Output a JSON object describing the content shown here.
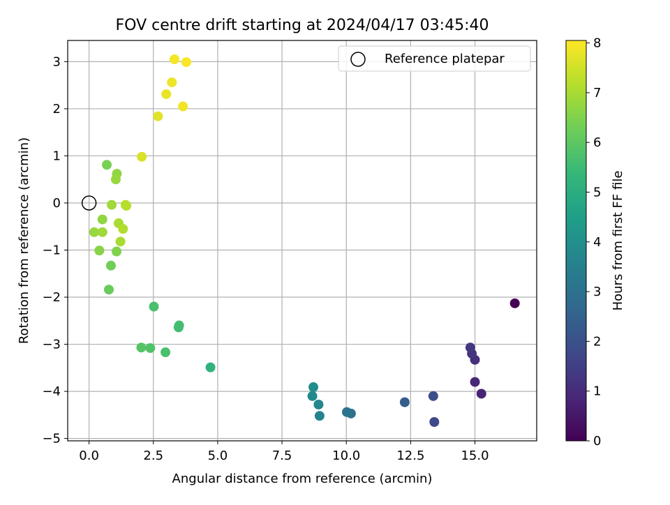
{
  "chart_data": {
    "type": "scatter",
    "title": "FOV centre drift starting at 2024/04/17 03:45:40",
    "xlabel": "Angular distance from reference (arcmin)",
    "ylabel": "Rotation from reference (arcmin)",
    "xlim": [
      -0.83,
      17.4
    ],
    "ylim": [
      -5.05,
      3.45
    ],
    "xticks": [
      0.0,
      2.5,
      5.0,
      7.5,
      10.0,
      12.5,
      15.0
    ],
    "xtick_labels": [
      "0.0",
      "2.5",
      "5.0",
      "7.5",
      "10.0",
      "12.5",
      "15.0"
    ],
    "yticks": [
      -5,
      -4,
      -3,
      -2,
      -1,
      0,
      1,
      2,
      3
    ],
    "ytick_labels": [
      "−5",
      "−4",
      "−3",
      "−2",
      "−1",
      "0",
      "1",
      "2",
      "3"
    ],
    "grid": true,
    "legend": {
      "position": "top-right",
      "entries": [
        "Reference platepar"
      ]
    },
    "reference_point": {
      "x": 0.0,
      "y": 0.0
    },
    "colorbar": {
      "label": "Hours from first FF file",
      "range": [
        0,
        8.05
      ],
      "ticks": [
        0,
        1,
        2,
        3,
        4,
        5,
        6,
        7,
        8
      ],
      "tick_labels": [
        "0",
        "1",
        "2",
        "3",
        "4",
        "5",
        "6",
        "7",
        "8"
      ],
      "colormap": "viridis"
    },
    "points": [
      {
        "x": 16.55,
        "y": -2.13,
        "hours": 0.0
      },
      {
        "x": 15.25,
        "y": -4.05,
        "hours": 0.8
      },
      {
        "x": 15.0,
        "y": -3.8,
        "hours": 0.9
      },
      {
        "x": 15.0,
        "y": -3.33,
        "hours": 1.1
      },
      {
        "x": 14.88,
        "y": -3.2,
        "hours": 1.2
      },
      {
        "x": 14.82,
        "y": -3.07,
        "hours": 1.3
      },
      {
        "x": 13.42,
        "y": -4.65,
        "hours": 1.8
      },
      {
        "x": 13.38,
        "y": -4.1,
        "hours": 1.9
      },
      {
        "x": 12.27,
        "y": -4.23,
        "hours": 2.4
      },
      {
        "x": 10.18,
        "y": -4.47,
        "hours": 3.0
      },
      {
        "x": 10.02,
        "y": -4.44,
        "hours": 3.1
      },
      {
        "x": 8.96,
        "y": -4.52,
        "hours": 3.6
      },
      {
        "x": 8.92,
        "y": -4.28,
        "hours": 3.7
      },
      {
        "x": 8.68,
        "y": -4.1,
        "hours": 3.8
      },
      {
        "x": 8.72,
        "y": -3.91,
        "hours": 3.9
      },
      {
        "x": 4.72,
        "y": -3.49,
        "hours": 5.2
      },
      {
        "x": 3.48,
        "y": -2.64,
        "hours": 5.5
      },
      {
        "x": 3.5,
        "y": -2.6,
        "hours": 5.6
      },
      {
        "x": 2.97,
        "y": -3.17,
        "hours": 5.7
      },
      {
        "x": 2.38,
        "y": -3.08,
        "hours": 5.8
      },
      {
        "x": 2.03,
        "y": -3.07,
        "hours": 5.9
      },
      {
        "x": 2.52,
        "y": -2.2,
        "hours": 5.7
      },
      {
        "x": 0.77,
        "y": -1.84,
        "hours": 6.2
      },
      {
        "x": 0.85,
        "y": -1.33,
        "hours": 6.3
      },
      {
        "x": 0.69,
        "y": 0.81,
        "hours": 6.4
      },
      {
        "x": 1.07,
        "y": -1.03,
        "hours": 6.5
      },
      {
        "x": 0.4,
        "y": -1.01,
        "hours": 6.6
      },
      {
        "x": 0.52,
        "y": -0.35,
        "hours": 6.7
      },
      {
        "x": 1.08,
        "y": 0.62,
        "hours": 6.7
      },
      {
        "x": 1.04,
        "y": 0.5,
        "hours": 6.8
      },
      {
        "x": 0.2,
        "y": -0.62,
        "hours": 6.8
      },
      {
        "x": 0.52,
        "y": -0.62,
        "hours": 6.9
      },
      {
        "x": 0.88,
        "y": -0.04,
        "hours": 6.9
      },
      {
        "x": 1.15,
        "y": -0.43,
        "hours": 7.0
      },
      {
        "x": 1.22,
        "y": -0.82,
        "hours": 7.0
      },
      {
        "x": 1.32,
        "y": -0.55,
        "hours": 7.1
      },
      {
        "x": 1.42,
        "y": -0.04,
        "hours": 7.2
      },
      {
        "x": 1.45,
        "y": -0.06,
        "hours": 7.2
      },
      {
        "x": 2.05,
        "y": 0.98,
        "hours": 7.6
      },
      {
        "x": 2.68,
        "y": 1.84,
        "hours": 7.7
      },
      {
        "x": 3.0,
        "y": 2.31,
        "hours": 7.8
      },
      {
        "x": 3.22,
        "y": 2.56,
        "hours": 7.85
      },
      {
        "x": 3.65,
        "y": 2.05,
        "hours": 7.9
      },
      {
        "x": 3.32,
        "y": 3.05,
        "hours": 7.95
      },
      {
        "x": 3.78,
        "y": 2.99,
        "hours": 8.0
      }
    ]
  }
}
